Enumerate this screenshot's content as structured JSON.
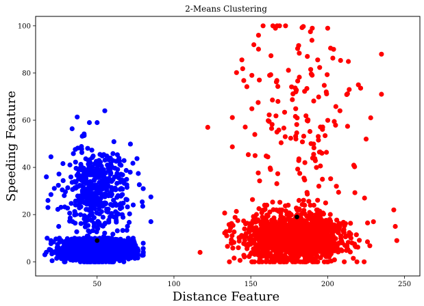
{
  "chart_data": {
    "type": "scatter",
    "title": "2-Means Clustering",
    "xlabel": "Distance Feature",
    "ylabel": "Speeding Feature",
    "xlim": [
      10,
      260
    ],
    "ylim": [
      -6,
      104
    ],
    "xticks": [
      50,
      100,
      150,
      200,
      250
    ],
    "yticks": [
      0,
      20,
      40,
      60,
      80,
      100
    ],
    "grid": false,
    "legend": "none",
    "series": [
      {
        "color": "#0000ff",
        "clusters": [
          {
            "x_mean": 50,
            "x_sd": 11,
            "y_mean": 5,
            "y_sd": 2.3,
            "n": 1500,
            "x_min": 17,
            "x_max": 80,
            "y_min": 0,
            "y_max": 10
          },
          {
            "x_mean": 50,
            "x_sd": 11,
            "y_mean": 30,
            "y_sd": 10,
            "n": 450,
            "x_min": 20,
            "x_max": 85,
            "y_min": 9,
            "y_max": 64
          }
        ],
        "points": [
          {
            "x": 17,
            "y": 36
          },
          {
            "x": 18,
            "y": 26
          },
          {
            "x": 18,
            "y": 23
          },
          {
            "x": 55,
            "y": 64
          },
          {
            "x": 50,
            "y": 59
          },
          {
            "x": 45,
            "y": 59
          },
          {
            "x": 85,
            "y": 17
          },
          {
            "x": 80,
            "y": 31
          },
          {
            "x": 16,
            "y": 3
          },
          {
            "x": 25,
            "y": 15
          },
          {
            "x": 20,
            "y": 9
          }
        ],
        "centroid": {
          "x": 50,
          "y": 9
        }
      },
      {
        "color": "#ff0000",
        "clusters": [
          {
            "x_mean": 178,
            "x_sd": 17,
            "y_mean": 10,
            "y_sd": 5.2,
            "n": 1300,
            "x_min": 133,
            "x_max": 245,
            "y_min": 0,
            "y_max": 24
          },
          {
            "x_mean": 180,
            "x_sd": 20,
            "y_mean": 58,
            "y_sd": 22,
            "n": 160,
            "x_min": 138,
            "x_max": 235,
            "y_min": 22,
            "y_max": 100
          }
        ],
        "points": [
          {
            "x": 117,
            "y": 4
          },
          {
            "x": 122,
            "y": 57
          },
          {
            "x": 235,
            "y": 88
          },
          {
            "x": 243,
            "y": 22
          },
          {
            "x": 245,
            "y": 9
          },
          {
            "x": 244,
            "y": 15
          },
          {
            "x": 158,
            "y": 100
          },
          {
            "x": 166,
            "y": 99
          },
          {
            "x": 190,
            "y": 99
          },
          {
            "x": 200,
            "y": 99
          },
          {
            "x": 155,
            "y": 96
          },
          {
            "x": 152,
            "y": 92
          },
          {
            "x": 228,
            "y": 61
          },
          {
            "x": 225,
            "y": 52
          },
          {
            "x": 224,
            "y": 27
          },
          {
            "x": 220,
            "y": 75
          },
          {
            "x": 214,
            "y": 73
          },
          {
            "x": 208,
            "y": 64
          }
        ],
        "centroid": {
          "x": 180,
          "y": 19
        }
      }
    ]
  }
}
